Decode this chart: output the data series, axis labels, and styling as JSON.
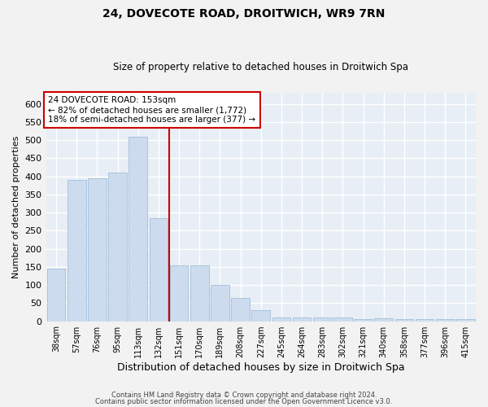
{
  "title1": "24, DOVECOTE ROAD, DROITWICH, WR9 7RN",
  "title2": "Size of property relative to detached houses in Droitwich Spa",
  "xlabel": "Distribution of detached houses by size in Droitwich Spa",
  "ylabel": "Number of detached properties",
  "categories": [
    "38sqm",
    "57sqm",
    "76sqm",
    "95sqm",
    "113sqm",
    "132sqm",
    "151sqm",
    "170sqm",
    "189sqm",
    "208sqm",
    "227sqm",
    "245sqm",
    "264sqm",
    "283sqm",
    "302sqm",
    "321sqm",
    "340sqm",
    "358sqm",
    "377sqm",
    "396sqm",
    "415sqm"
  ],
  "values": [
    145,
    390,
    395,
    410,
    510,
    285,
    155,
    155,
    100,
    65,
    30,
    10,
    10,
    10,
    10,
    5,
    8,
    5,
    5,
    5,
    5
  ],
  "bar_color": "#ccdcee",
  "bar_edge_color": "#aac4de",
  "annotation_line1": "24 DOVECOTE ROAD: 153sqm",
  "annotation_line2": "← 82% of detached houses are smaller (1,772)",
  "annotation_line3": "18% of semi-detached houses are larger (377) →",
  "vline_color": "#cc0000",
  "vline_x_index": 5,
  "annotation_box_color": "#ffffff",
  "annotation_box_edge": "#cc0000",
  "ylim": [
    0,
    630
  ],
  "yticks": [
    0,
    50,
    100,
    150,
    200,
    250,
    300,
    350,
    400,
    450,
    500,
    550,
    600
  ],
  "bg_color": "#e8eef5",
  "grid_color": "#ffffff",
  "fig_bg_color": "#f2f2f2",
  "footer1": "Contains HM Land Registry data © Crown copyright and database right 2024.",
  "footer2": "Contains public sector information licensed under the Open Government Licence v3.0."
}
